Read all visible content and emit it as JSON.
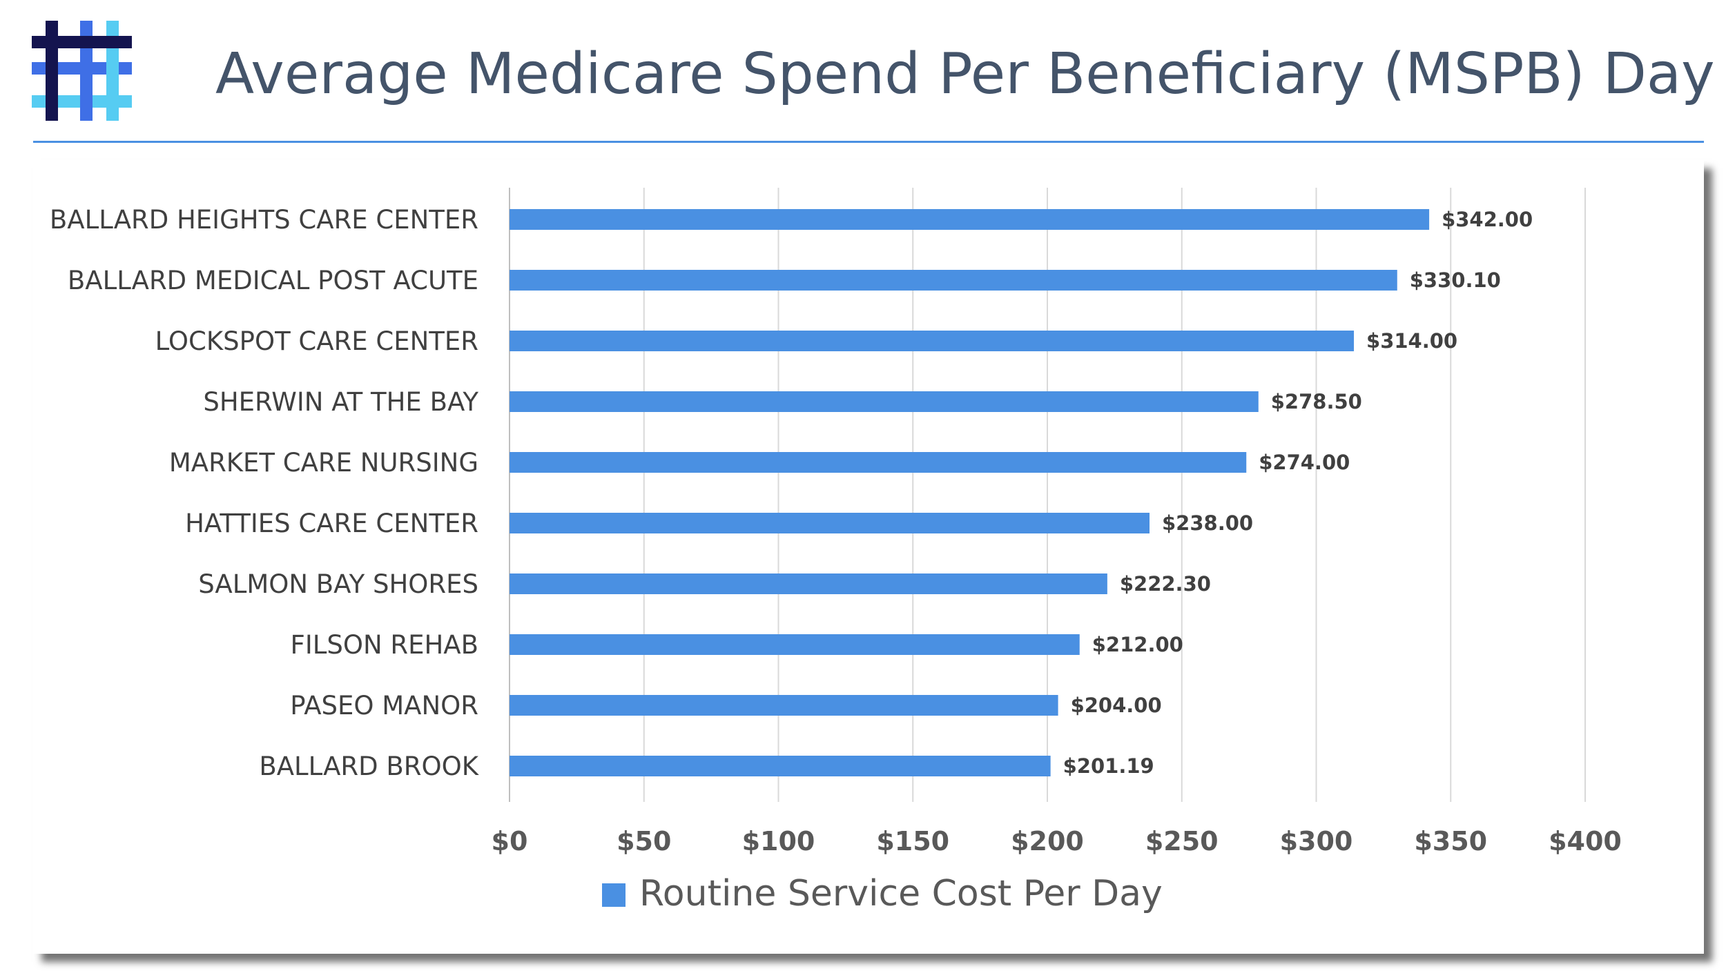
{
  "header": {
    "title": "Average Medicare Spend Per Beneficiary (MSPB) Day"
  },
  "colors": {
    "title": "#44546a",
    "accent": "#4a90e2",
    "bar": "#4a90e2",
    "grid": "#d9d9d9",
    "logo_dark": "#14144f",
    "logo_blue": "#3f6fe6",
    "logo_cyan": "#56ccf2"
  },
  "logo": {
    "icon": "hashtag-weave-logo"
  },
  "chart_data": {
    "type": "bar",
    "orientation": "horizontal",
    "title": "Average Medicare Spend Per Beneficiary (MSPB) Day",
    "categories": [
      "BALLARD HEIGHTS CARE CENTER",
      "BALLARD MEDICAL POST ACUTE",
      "LOCKSPOT CARE CENTER",
      "SHERWIN AT THE BAY",
      "MARKET CARE NURSING",
      "HATTIES CARE CENTER",
      "SALMON BAY SHORES",
      "FILSON REHAB",
      "PASEO MANOR",
      "BALLARD BROOK"
    ],
    "series": [
      {
        "name": "Routine Service Cost Per Day",
        "values": [
          342.0,
          330.1,
          314.0,
          278.5,
          274.0,
          238.0,
          222.3,
          212.0,
          204.0,
          201.19
        ],
        "labels": [
          "$342.00",
          "$330.10",
          "$314.00",
          "$278.50",
          "$274.00",
          "$238.00",
          "$222.30",
          "$212.00",
          "$204.00",
          "$201.19"
        ]
      }
    ],
    "xlim": [
      0,
      400
    ],
    "xticks": [
      0,
      50,
      100,
      150,
      200,
      250,
      300,
      350,
      400
    ],
    "xtick_labels": [
      "$0",
      "$50",
      "$100",
      "$150",
      "$200",
      "$250",
      "$300",
      "$350",
      "$400"
    ],
    "xlabel": "",
    "ylabel": "",
    "grid": true,
    "legend_position": "bottom"
  }
}
